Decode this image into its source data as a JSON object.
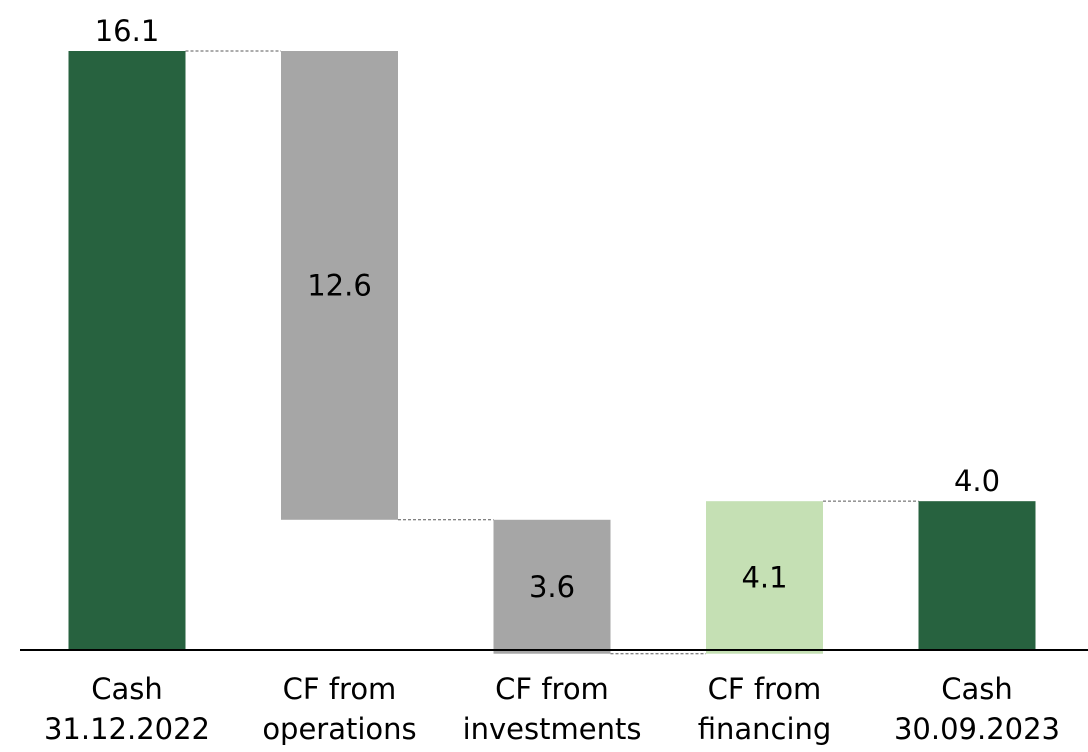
{
  "chart_data": {
    "type": "bar",
    "subtype": "waterfall",
    "categories": [
      [
        "Cash",
        "31.12.2022"
      ],
      [
        "CF from",
        "operations"
      ],
      [
        "CF from",
        "investments"
      ],
      [
        "CF from",
        "financing"
      ],
      [
        "Cash",
        "30.09.2023"
      ]
    ],
    "bars": [
      {
        "kind": "total",
        "value": 16.1,
        "label": "16.1",
        "label_pos": "above"
      },
      {
        "kind": "decrease",
        "value": 12.6,
        "label": "12.6",
        "label_pos": "inside"
      },
      {
        "kind": "decrease",
        "value": 3.6,
        "label": "3.6",
        "label_pos": "inside"
      },
      {
        "kind": "increase",
        "value": 4.1,
        "label": "4.1",
        "label_pos": "inside"
      },
      {
        "kind": "total",
        "value": 4.0,
        "label": "4.0",
        "label_pos": "above"
      }
    ],
    "colors": {
      "total": "#27623f",
      "decrease": "#a6a6a6",
      "increase": "#c5e0b4",
      "connector": "#595959",
      "axis": "#000000"
    },
    "ylim": [
      0,
      16.1
    ],
    "grid": false,
    "legend": "none",
    "title": "",
    "xlabel": "",
    "ylabel": ""
  }
}
